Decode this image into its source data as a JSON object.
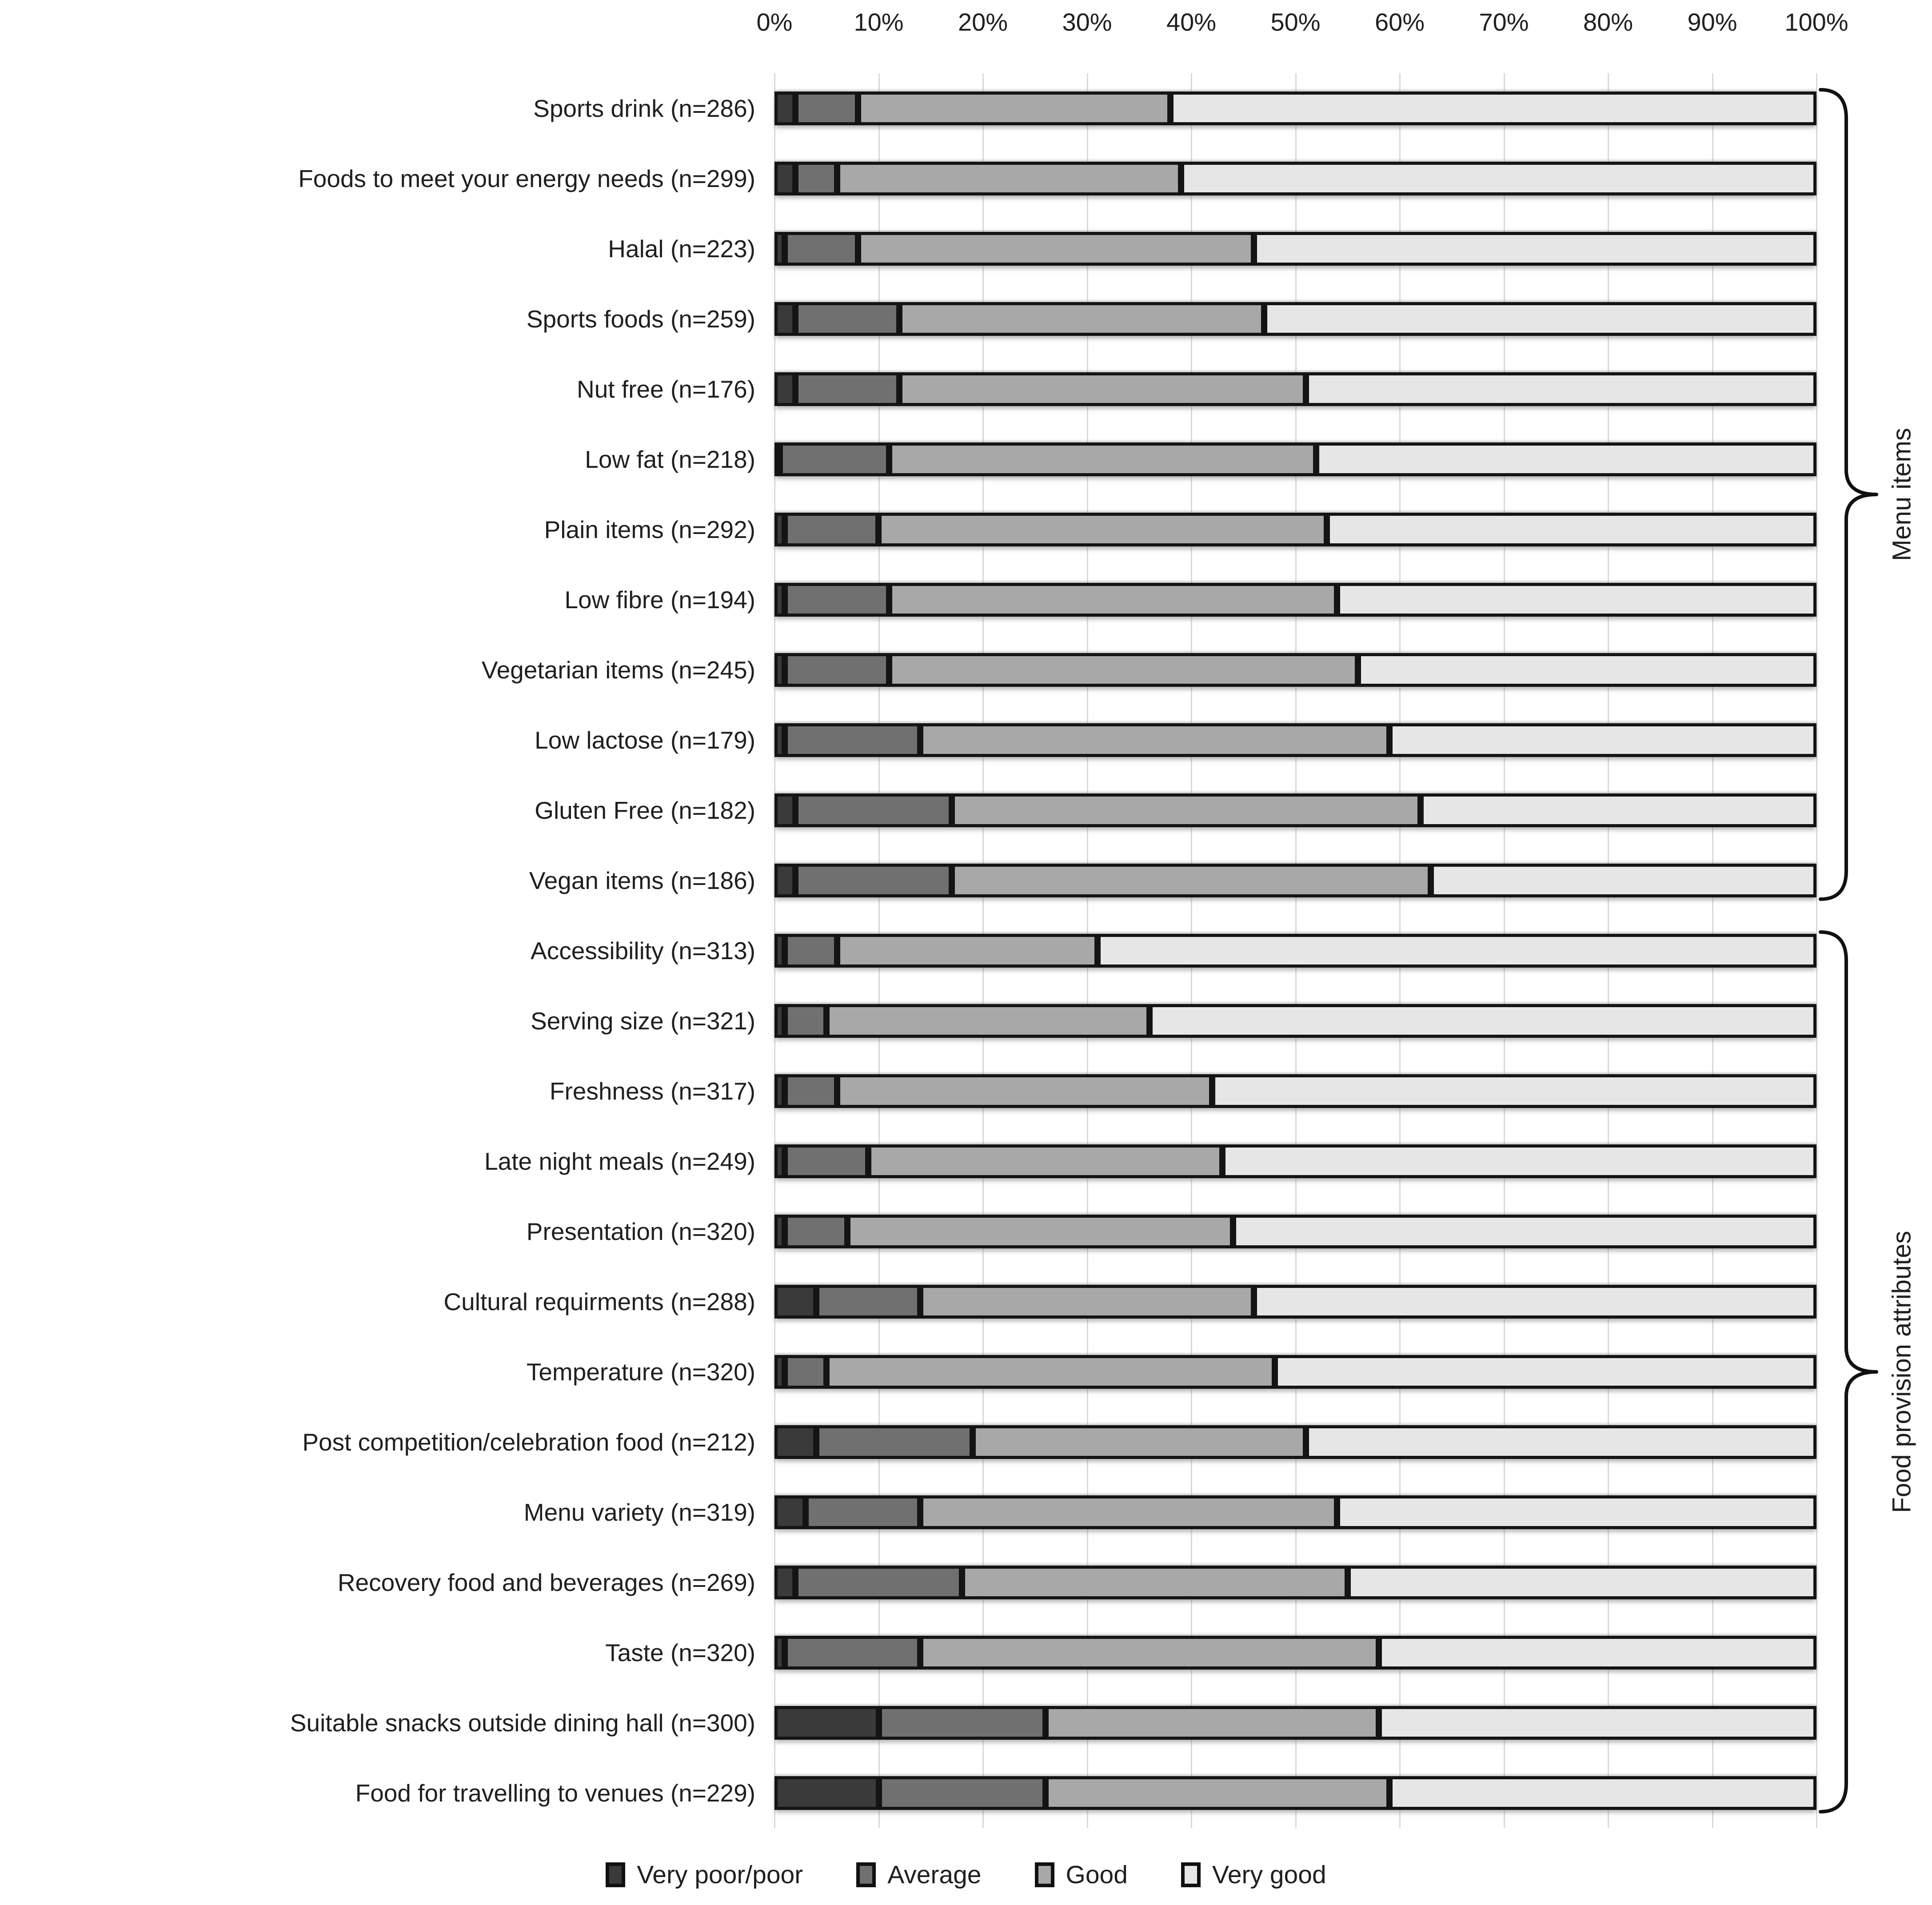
{
  "chart_data": {
    "type": "bar",
    "stacked": true,
    "orientation": "horizontal",
    "x_axis": {
      "position": "top",
      "min": 0,
      "max": 100,
      "ticks": [
        "0%",
        "10%",
        "20%",
        "30%",
        "40%",
        "50%",
        "60%",
        "70%",
        "80%",
        "90%",
        "100%"
      ]
    },
    "grid": true,
    "gridline_color": "#d9d9d9",
    "segment_border_color": "#141414",
    "legend_position": "bottom",
    "categories": [
      "Sports drink (n=286)",
      "Foods to meet your energy needs (n=299)",
      "Halal (n=223)",
      "Sports foods (n=259)",
      "Nut free (n=176)",
      "Low fat (n=218)",
      "Plain items (n=292)",
      "Low fibre (n=194)",
      "Vegetarian items (n=245)",
      "Low lactose (n=179)",
      "Gluten Free (n=182)",
      "Vegan items (n=186)",
      "Accessibility (n=313)",
      "Serving size (n=321)",
      "Freshness (n=317)",
      "Late night meals (n=249)",
      "Presentation (n=320)",
      "Cultural requirments (n=288)",
      "Temperature (n=320)",
      "Post competition/celebration food (n=212)",
      "Menu variety (n=319)",
      "Recovery food and beverages (n=269)",
      "Taste (n=320)",
      "Suitable snacks outside dining hall (n=300)",
      "Food for travelling to venues (n=229)"
    ],
    "series": [
      {
        "name": "Very poor/poor",
        "color": "#3a3a3a",
        "values": [
          2,
          2,
          1,
          2,
          2,
          0.5,
          1,
          1,
          1,
          1,
          2,
          2,
          1,
          1,
          1,
          1,
          1,
          4,
          1,
          4,
          3,
          2,
          1,
          10,
          10
        ]
      },
      {
        "name": "Average",
        "color": "#707070",
        "values": [
          6,
          4,
          7,
          10,
          10,
          10.5,
          9,
          10,
          10,
          13,
          15,
          15,
          5,
          4,
          5,
          8,
          6,
          10,
          4,
          15,
          11,
          16,
          13,
          16,
          16
        ]
      },
      {
        "name": "Good",
        "color": "#a8a8a8",
        "values": [
          30,
          33,
          38,
          35,
          39,
          41,
          43,
          43,
          45,
          45,
          45,
          46,
          25,
          31,
          36,
          34,
          37,
          32,
          43,
          32,
          40,
          37,
          44,
          32,
          33
        ]
      },
      {
        "name": "Very good",
        "color": "#e6e6e6",
        "values": [
          62,
          61,
          54,
          53,
          49,
          48,
          47,
          46,
          44,
          41,
          38,
          37,
          69,
          64,
          58,
          57,
          56,
          54,
          52,
          49,
          46,
          45,
          42,
          42,
          41
        ]
      }
    ],
    "groups": [
      {
        "label": "Menu items",
        "start_row": 0,
        "end_row": 11
      },
      {
        "label": "Food provision attributes",
        "start_row": 12,
        "end_row": 24
      }
    ]
  }
}
